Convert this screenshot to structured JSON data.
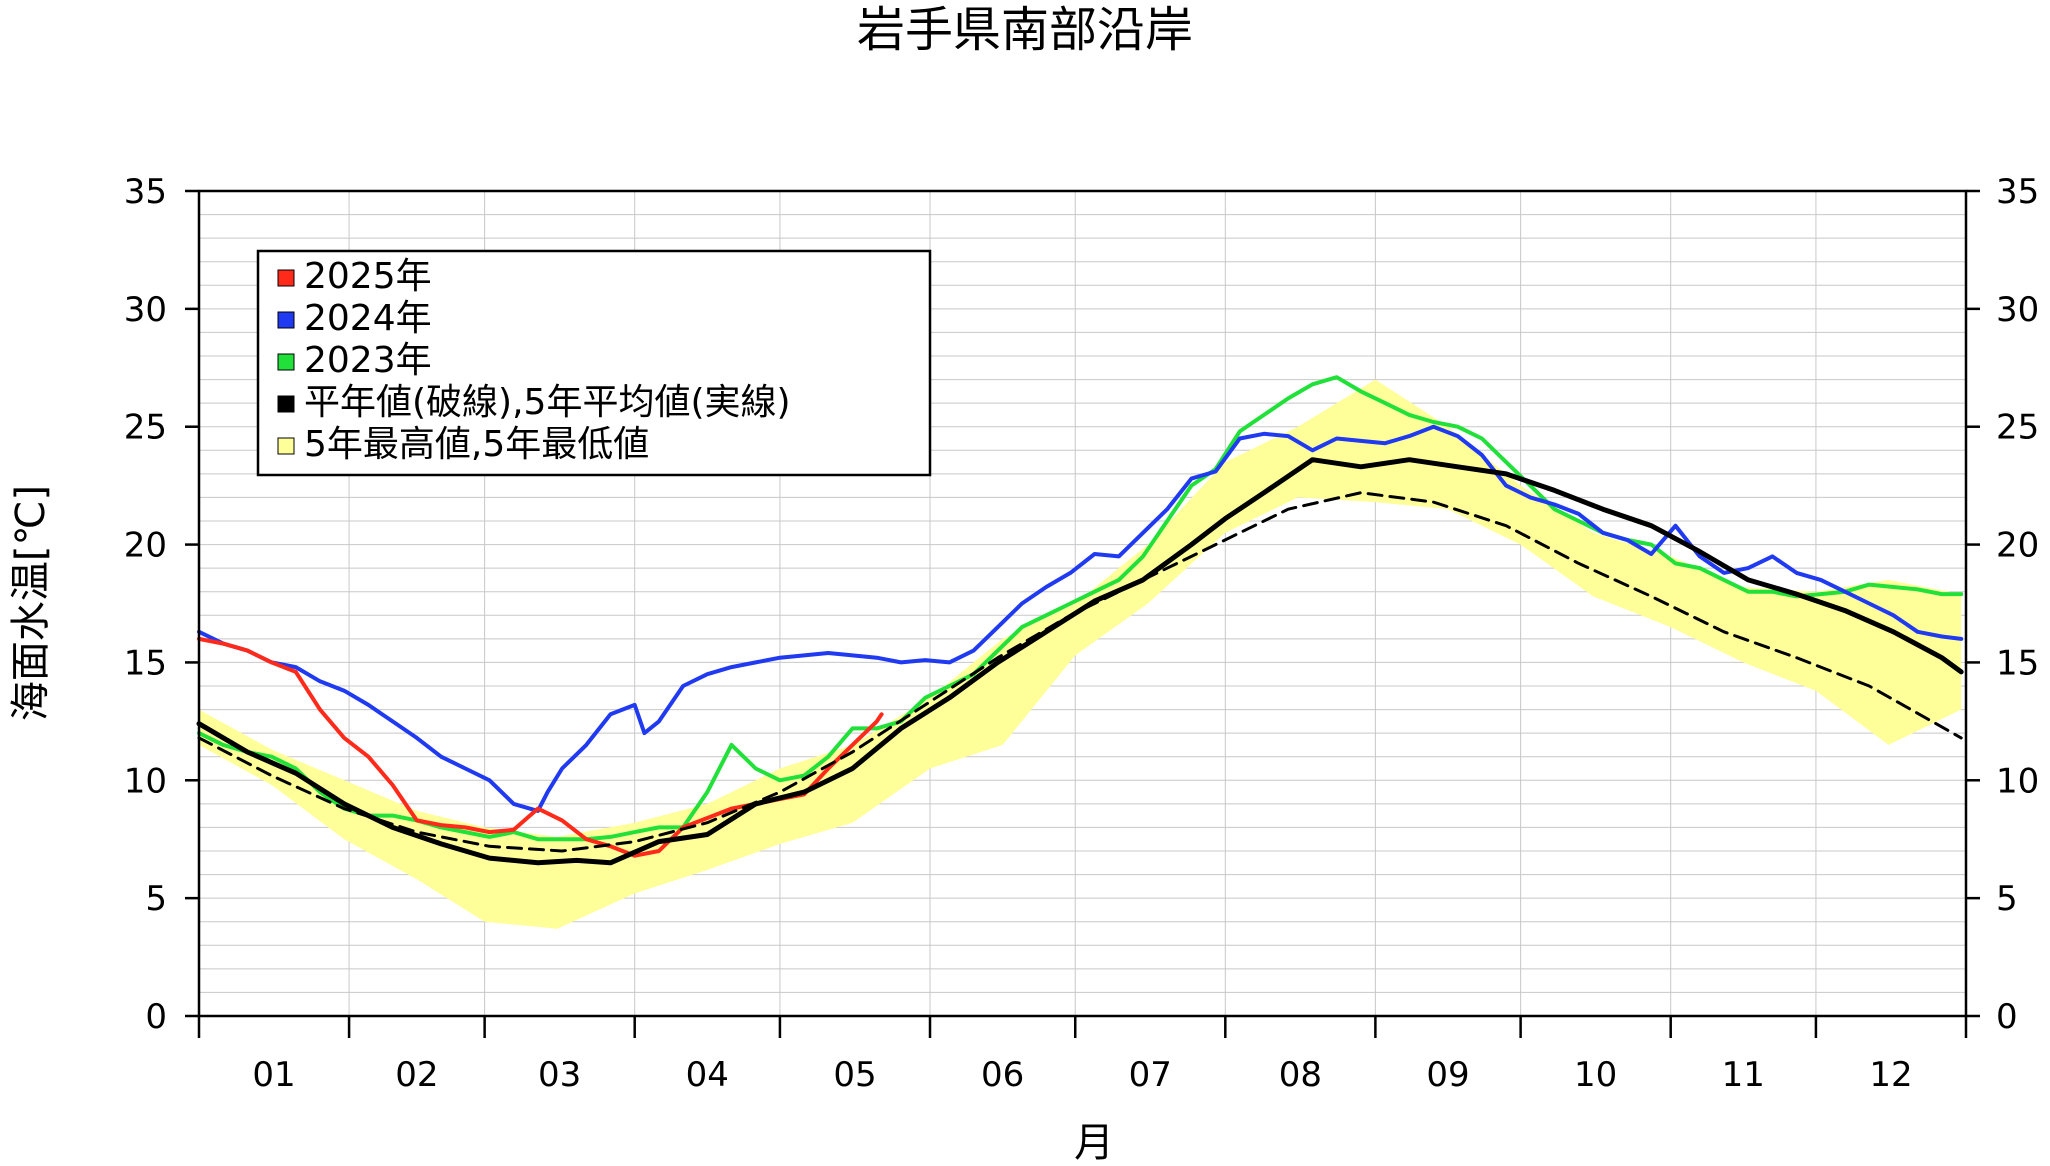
{
  "title": "岩手県南部沿岸",
  "chart_data": {
    "type": "line",
    "title": "岩手県南部沿岸",
    "xlabel": "月",
    "ylabel": "海面水温[℃]",
    "xlim": [
      0,
      365
    ],
    "ylim": [
      0,
      35
    ],
    "yticks": [
      0,
      5,
      10,
      15,
      20,
      25,
      30,
      35
    ],
    "ytick_labels": [
      "0",
      "5",
      "10",
      "15",
      "20",
      "25",
      "30",
      "35"
    ],
    "months": [
      "01",
      "02",
      "03",
      "04",
      "05",
      "06",
      "07",
      "08",
      "09",
      "10",
      "11",
      "12"
    ],
    "grid": true,
    "legend_position": "top-left",
    "legend": [
      {
        "label": "2025年",
        "color": "#ff2a1a"
      },
      {
        "label": "2024年",
        "color": "#1f3af0"
      },
      {
        "label": "2023年",
        "color": "#22e03a"
      },
      {
        "label": "平年値(破線),5年平均値(実線)",
        "color": "#000000"
      },
      {
        "label": "5年最高値,5年最低値",
        "color": "#ffff99"
      }
    ],
    "band": {
      "color": "#ffff99",
      "x": [
        0,
        15,
        30,
        45,
        59,
        74,
        90,
        105,
        120,
        135,
        151,
        166,
        181,
        196,
        212,
        227,
        243,
        258,
        273,
        288,
        304,
        319,
        334,
        349,
        364
      ],
      "upper": [
        13.0,
        11.3,
        10.0,
        8.7,
        8.0,
        7.6,
        8.2,
        9.0,
        10.5,
        11.5,
        13.5,
        16.0,
        17.5,
        20.0,
        23.5,
        25.0,
        27.0,
        25.0,
        22.5,
        20.5,
        19.5,
        18.2,
        18.0,
        18.5,
        17.9
      ],
      "lower": [
        11.5,
        9.8,
        7.5,
        5.8,
        4.0,
        3.7,
        5.2,
        6.2,
        7.3,
        8.2,
        10.5,
        11.5,
        15.3,
        17.5,
        20.5,
        22.0,
        21.8,
        21.5,
        20.0,
        17.8,
        16.5,
        15.0,
        13.8,
        11.5,
        13.0
      ]
    },
    "series": [
      {
        "name": "2025年",
        "color": "#ff2a1a",
        "width": 4,
        "x": [
          0,
          5,
          10,
          15,
          20,
          25,
          30,
          35,
          40,
          45,
          50,
          55,
          60,
          65,
          70,
          75,
          80,
          85,
          90,
          95,
          100,
          105,
          110,
          115,
          120,
          125,
          130,
          135,
          140,
          141
        ],
        "y": [
          16.0,
          15.8,
          15.5,
          15.0,
          14.6,
          13.0,
          11.8,
          11.0,
          9.8,
          8.3,
          8.1,
          8.0,
          7.8,
          7.9,
          8.8,
          8.3,
          7.5,
          7.2,
          6.8,
          7.0,
          8.0,
          8.4,
          8.8,
          9.0,
          9.2,
          9.4,
          10.5,
          11.5,
          12.5,
          12.8
        ]
      },
      {
        "name": "2024年",
        "color": "#1f3af0",
        "width": 4,
        "x": [
          0,
          5,
          10,
          15,
          20,
          25,
          30,
          35,
          40,
          45,
          50,
          55,
          60,
          65,
          70,
          72,
          75,
          80,
          85,
          90,
          92,
          95,
          100,
          105,
          110,
          115,
          120,
          125,
          130,
          135,
          140,
          145,
          150,
          155,
          160,
          165,
          170,
          175,
          180,
          185,
          190,
          195,
          200,
          205,
          210,
          215,
          220,
          225,
          230,
          235,
          240,
          245,
          250,
          255,
          260,
          265,
          270,
          275,
          280,
          285,
          290,
          295,
          300,
          305,
          310,
          315,
          320,
          325,
          330,
          335,
          340,
          345,
          350,
          355,
          360,
          364
        ],
        "y": [
          16.3,
          15.8,
          15.5,
          15.0,
          14.8,
          14.2,
          13.8,
          13.2,
          12.5,
          11.8,
          11.0,
          10.5,
          10.0,
          9.0,
          8.7,
          9.5,
          10.5,
          11.5,
          12.8,
          13.2,
          12.0,
          12.5,
          14.0,
          14.5,
          14.8,
          15.0,
          15.2,
          15.3,
          15.4,
          15.3,
          15.2,
          15.0,
          15.1,
          15.0,
          15.5,
          16.5,
          17.5,
          18.2,
          18.8,
          19.6,
          19.5,
          20.5,
          21.5,
          22.8,
          23.1,
          24.5,
          24.7,
          24.6,
          24.0,
          24.5,
          24.4,
          24.3,
          24.6,
          25.0,
          24.6,
          23.8,
          22.5,
          22.0,
          21.7,
          21.3,
          20.5,
          20.2,
          19.6,
          20.8,
          19.5,
          18.8,
          19.0,
          19.5,
          18.8,
          18.5,
          18.0,
          17.5,
          17.0,
          16.3,
          16.1,
          16.0
        ]
      },
      {
        "name": "2023年",
        "color": "#22e03a",
        "width": 4,
        "x": [
          0,
          5,
          10,
          15,
          20,
          25,
          30,
          35,
          40,
          45,
          50,
          55,
          60,
          65,
          70,
          75,
          80,
          85,
          90,
          95,
          100,
          105,
          110,
          115,
          120,
          125,
          130,
          135,
          140,
          145,
          150,
          155,
          160,
          165,
          170,
          175,
          180,
          185,
          190,
          195,
          200,
          205,
          210,
          215,
          220,
          225,
          230,
          235,
          240,
          245,
          250,
          255,
          260,
          265,
          270,
          275,
          280,
          285,
          290,
          295,
          300,
          305,
          310,
          315,
          320,
          325,
          330,
          335,
          340,
          345,
          350,
          355,
          360,
          364
        ],
        "y": [
          12.0,
          11.5,
          11.2,
          11.0,
          10.5,
          9.5,
          8.8,
          8.5,
          8.5,
          8.3,
          8.0,
          7.8,
          7.6,
          7.8,
          7.5,
          7.5,
          7.5,
          7.6,
          7.8,
          8.0,
          8.0,
          9.5,
          11.5,
          10.5,
          10.0,
          10.2,
          11.0,
          12.2,
          12.2,
          12.5,
          13.5,
          14.0,
          14.5,
          15.5,
          16.5,
          17.0,
          17.5,
          18.0,
          18.5,
          19.5,
          21.0,
          22.5,
          23.2,
          24.8,
          25.5,
          26.2,
          26.8,
          27.1,
          26.5,
          26.0,
          25.5,
          25.2,
          25.0,
          24.5,
          23.5,
          22.5,
          21.5,
          21.0,
          20.5,
          20.2,
          20.0,
          19.2,
          19.0,
          18.5,
          18.0,
          18.0,
          17.8,
          17.9,
          18.0,
          18.3,
          18.2,
          18.1,
          17.9,
          17.9
        ]
      },
      {
        "name": "5年平均値",
        "color": "#000000",
        "width": 5,
        "dash": false,
        "x": [
          0,
          10,
          20,
          30,
          40,
          50,
          60,
          70,
          78,
          85,
          95,
          105,
          115,
          125,
          135,
          145,
          155,
          165,
          175,
          185,
          195,
          205,
          212,
          220,
          230,
          240,
          250,
          260,
          270,
          280,
          290,
          300,
          310,
          320,
          330,
          340,
          350,
          360,
          364
        ],
        "y": [
          12.4,
          11.2,
          10.3,
          9.0,
          8.0,
          7.3,
          6.7,
          6.5,
          6.6,
          6.5,
          7.4,
          7.7,
          9.0,
          9.5,
          10.5,
          12.2,
          13.5,
          15.0,
          16.3,
          17.6,
          18.5,
          20.0,
          21.1,
          22.2,
          23.6,
          23.3,
          23.6,
          23.3,
          23.0,
          22.3,
          21.5,
          20.8,
          19.7,
          18.5,
          17.9,
          17.2,
          16.3,
          15.2,
          14.6
        ]
      },
      {
        "name": "平年値",
        "color": "#000000",
        "width": 3,
        "dash": true,
        "x": [
          0,
          15,
          30,
          45,
          60,
          75,
          90,
          105,
          120,
          135,
          150,
          165,
          180,
          195,
          210,
          225,
          240,
          255,
          270,
          285,
          300,
          315,
          330,
          345,
          364
        ],
        "y": [
          11.8,
          10.2,
          8.8,
          7.8,
          7.2,
          7.0,
          7.4,
          8.2,
          9.5,
          11.2,
          13.2,
          15.2,
          17.0,
          18.5,
          20.0,
          21.5,
          22.2,
          21.8,
          20.8,
          19.2,
          17.8,
          16.3,
          15.2,
          14.0,
          11.8
        ]
      }
    ]
  }
}
